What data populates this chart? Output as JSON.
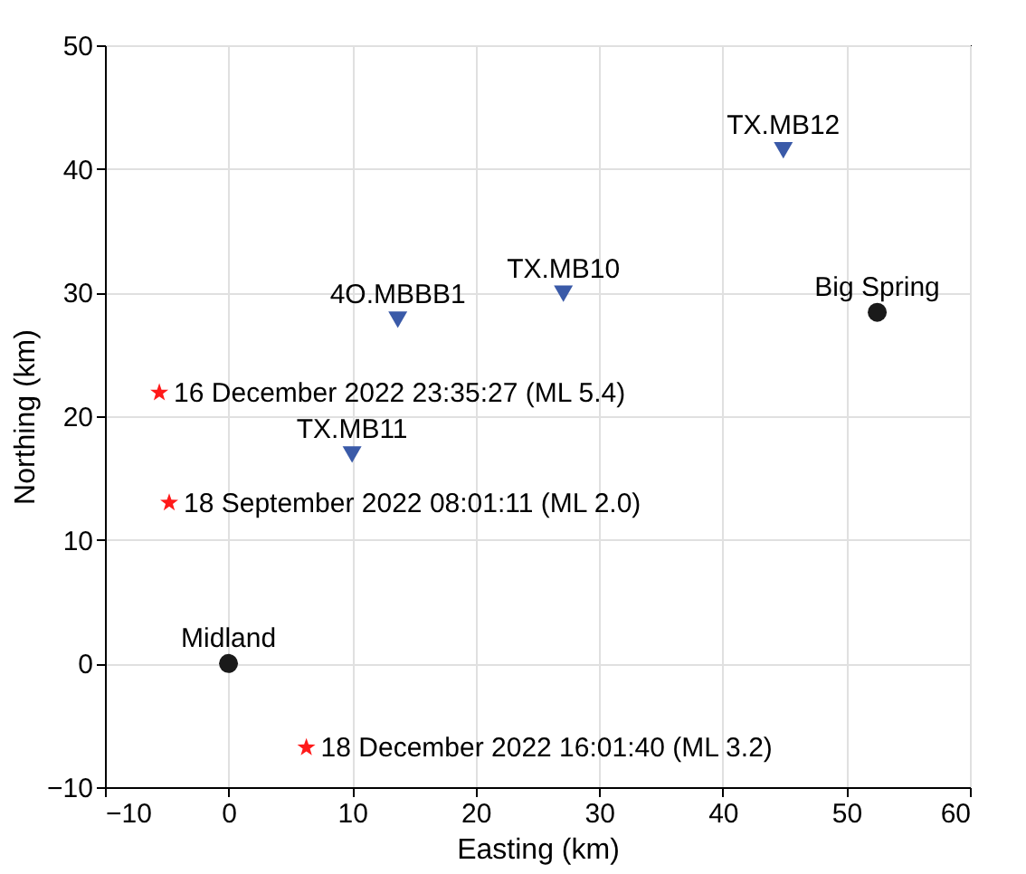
{
  "chart_data": {
    "type": "scatter",
    "xlabel": "Easting (km)",
    "ylabel": "Northing (km)",
    "xlim": [
      -10,
      60
    ],
    "ylim": [
      -10,
      50
    ],
    "xticks": [
      -10,
      0,
      10,
      20,
      30,
      40,
      50,
      60
    ],
    "yticks": [
      -10,
      0,
      10,
      20,
      30,
      40,
      50
    ],
    "grid": true,
    "series": [
      {
        "color": "#3a5aa8",
        "marker": "triangle",
        "x": [
          44.9,
          27.1,
          13.7,
          10.0
        ],
        "values": [
          41.5,
          29.9,
          27.8,
          16.9
        ]
      },
      {
        "color": "#1a1a1a",
        "marker": "circle",
        "x": [
          0,
          52.5
        ],
        "values": [
          0,
          28.4
        ]
      },
      {
        "color": "#ff1a1a",
        "marker": "star",
        "x": [
          -5.6,
          -4.8,
          6.3
        ],
        "values": [
          21.9,
          13.0,
          -6.8
        ]
      }
    ],
    "annotations": [
      {
        "text": "TX.MB12",
        "x": 44.9,
        "y": 41.5
      },
      {
        "text": "TX.MB10",
        "x": 27.1,
        "y": 29.9
      },
      {
        "text": "4O.MBBB1",
        "x": 13.7,
        "y": 27.8
      },
      {
        "text": "TX.MB11",
        "x": 10.0,
        "y": 16.9
      },
      {
        "text": "Midland",
        "x": 0,
        "y": 0
      },
      {
        "text": "Big Spring",
        "x": 52.5,
        "y": 28.4
      },
      {
        "text": "16 December 2022 23:35:27 (ML 5.4)",
        "x": -5.6,
        "y": 21.9
      },
      {
        "text": "18 September 2022 08:01:11 (ML 2.0)",
        "x": -4.8,
        "y": 13.0
      },
      {
        "text": "18 December 2022 16:01:40 (ML 3.2)",
        "x": 6.3,
        "y": -6.8
      }
    ]
  }
}
